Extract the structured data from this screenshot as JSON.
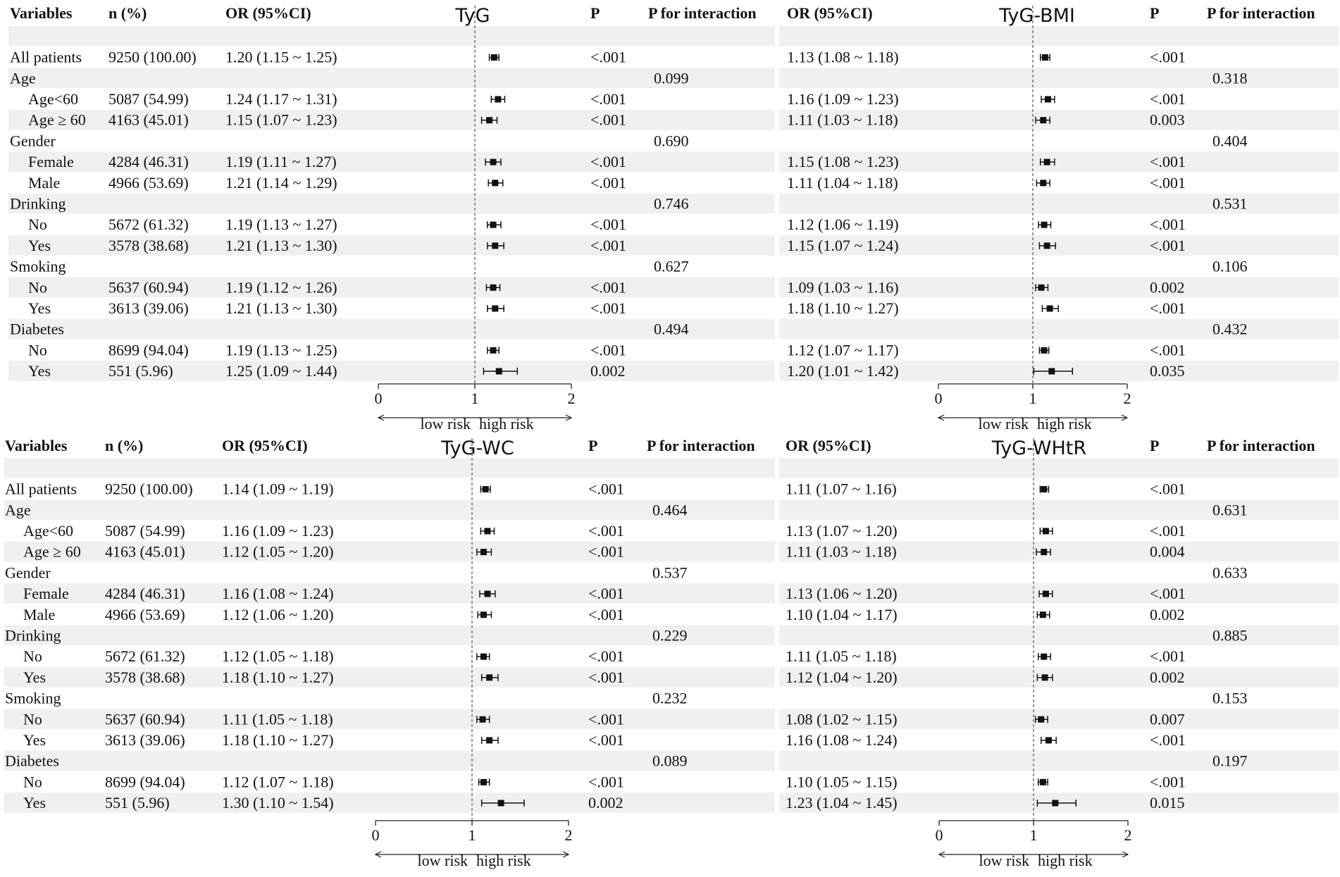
{
  "headers": {
    "variables": "Variables",
    "n": "n (%)",
    "or": "OR (95%CI)",
    "p": "P",
    "p_interaction": "P for interaction"
  },
  "axis": {
    "ticks": [
      "0",
      "1",
      "2"
    ],
    "low": "low risk",
    "high": "high risk"
  },
  "rows": [
    {
      "label": "",
      "indent": false,
      "n": "",
      "shade": true
    },
    {
      "label": "All patients",
      "indent": false,
      "n": "9250 (100.00)",
      "shade": false
    },
    {
      "label": "Age",
      "indent": false,
      "n": "",
      "shade": true
    },
    {
      "label": "Age<60",
      "indent": true,
      "n": "5087 (54.99)",
      "shade": false
    },
    {
      "label": "Age ≥ 60",
      "indent": true,
      "n": "4163 (45.01)",
      "shade": true
    },
    {
      "label": "Gender",
      "indent": false,
      "n": "",
      "shade": false
    },
    {
      "label": "Female",
      "indent": true,
      "n": "4284 (46.31)",
      "shade": true
    },
    {
      "label": "Male",
      "indent": true,
      "n": "4966 (53.69)",
      "shade": false
    },
    {
      "label": "Drinking",
      "indent": false,
      "n": "",
      "shade": true
    },
    {
      "label": "No",
      "indent": true,
      "n": "5672 (61.32)",
      "shade": false
    },
    {
      "label": "Yes",
      "indent": true,
      "n": "3578 (38.68)",
      "shade": true
    },
    {
      "label": "Smoking",
      "indent": false,
      "n": "",
      "shade": false
    },
    {
      "label": "No",
      "indent": true,
      "n": "5637 (60.94)",
      "shade": true
    },
    {
      "label": "Yes",
      "indent": true,
      "n": "3613 (39.06)",
      "shade": false
    },
    {
      "label": "Diabetes",
      "indent": false,
      "n": "",
      "shade": true
    },
    {
      "label": "No",
      "indent": true,
      "n": "8699 (94.04)",
      "shade": false
    },
    {
      "label": "Yes",
      "indent": true,
      "n": "551 (5.96)",
      "shade": true
    }
  ],
  "chart_data": [
    {
      "type": "forest",
      "title": "TyG",
      "xlim": [
        0,
        2
      ],
      "reference": 1,
      "rows": [
        {
          "or": "",
          "p": "",
          "pint": "",
          "est": null,
          "lo": null,
          "hi": null
        },
        {
          "or": "1.20 (1.15 ~ 1.25)",
          "p": "<.001",
          "pint": "",
          "est": 1.2,
          "lo": 1.15,
          "hi": 1.25
        },
        {
          "or": "",
          "p": "",
          "pint": "0.099",
          "est": null,
          "lo": null,
          "hi": null
        },
        {
          "or": "1.24 (1.17 ~ 1.31)",
          "p": "<.001",
          "pint": "",
          "est": 1.24,
          "lo": 1.17,
          "hi": 1.31
        },
        {
          "or": "1.15 (1.07 ~ 1.23)",
          "p": "<.001",
          "pint": "",
          "est": 1.15,
          "lo": 1.07,
          "hi": 1.23
        },
        {
          "or": "",
          "p": "",
          "pint": "0.690",
          "est": null,
          "lo": null,
          "hi": null
        },
        {
          "or": "1.19 (1.11 ~ 1.27)",
          "p": "<.001",
          "pint": "",
          "est": 1.19,
          "lo": 1.11,
          "hi": 1.27
        },
        {
          "or": "1.21 (1.14 ~ 1.29)",
          "p": "<.001",
          "pint": "",
          "est": 1.21,
          "lo": 1.14,
          "hi": 1.29
        },
        {
          "or": "",
          "p": "",
          "pint": "0.746",
          "est": null,
          "lo": null,
          "hi": null
        },
        {
          "or": "1.19 (1.13 ~ 1.27)",
          "p": "<.001",
          "pint": "",
          "est": 1.19,
          "lo": 1.13,
          "hi": 1.27
        },
        {
          "or": "1.21 (1.13 ~ 1.30)",
          "p": "<.001",
          "pint": "",
          "est": 1.21,
          "lo": 1.13,
          "hi": 1.3
        },
        {
          "or": "",
          "p": "",
          "pint": "0.627",
          "est": null,
          "lo": null,
          "hi": null
        },
        {
          "or": "1.19 (1.12 ~ 1.26)",
          "p": "<.001",
          "pint": "",
          "est": 1.19,
          "lo": 1.12,
          "hi": 1.26
        },
        {
          "or": "1.21 (1.13 ~ 1.30)",
          "p": "<.001",
          "pint": "",
          "est": 1.21,
          "lo": 1.13,
          "hi": 1.3
        },
        {
          "or": "",
          "p": "",
          "pint": "0.494",
          "est": null,
          "lo": null,
          "hi": null
        },
        {
          "or": "1.19 (1.13 ~ 1.25)",
          "p": "<.001",
          "pint": "",
          "est": 1.19,
          "lo": 1.13,
          "hi": 1.25
        },
        {
          "or": "1.25 (1.09 ~ 1.44)",
          "p": "0.002",
          "pint": "",
          "est": 1.25,
          "lo": 1.09,
          "hi": 1.44
        }
      ]
    },
    {
      "type": "forest",
      "title": "TyG-BMI",
      "xlim": [
        0,
        2
      ],
      "reference": 1,
      "rows": [
        {
          "or": "",
          "p": "",
          "pint": "",
          "est": null,
          "lo": null,
          "hi": null
        },
        {
          "or": "1.13 (1.08 ~ 1.18)",
          "p": "<.001",
          "pint": "",
          "est": 1.13,
          "lo": 1.08,
          "hi": 1.18
        },
        {
          "or": "",
          "p": "",
          "pint": "0.318",
          "est": null,
          "lo": null,
          "hi": null
        },
        {
          "or": "1.16 (1.09 ~ 1.23)",
          "p": "<.001",
          "pint": "",
          "est": 1.16,
          "lo": 1.09,
          "hi": 1.23
        },
        {
          "or": "1.11 (1.03 ~ 1.18)",
          "p": "0.003",
          "pint": "",
          "est": 1.11,
          "lo": 1.03,
          "hi": 1.18
        },
        {
          "or": "",
          "p": "",
          "pint": "0.404",
          "est": null,
          "lo": null,
          "hi": null
        },
        {
          "or": "1.15 (1.08 ~ 1.23)",
          "p": "<.001",
          "pint": "",
          "est": 1.15,
          "lo": 1.08,
          "hi": 1.23
        },
        {
          "or": "1.11 (1.04 ~ 1.18)",
          "p": "<.001",
          "pint": "",
          "est": 1.11,
          "lo": 1.04,
          "hi": 1.18
        },
        {
          "or": "",
          "p": "",
          "pint": "0.531",
          "est": null,
          "lo": null,
          "hi": null
        },
        {
          "or": "1.12 (1.06 ~ 1.19)",
          "p": "<.001",
          "pint": "",
          "est": 1.12,
          "lo": 1.06,
          "hi": 1.19
        },
        {
          "or": "1.15 (1.07 ~ 1.24)",
          "p": "<.001",
          "pint": "",
          "est": 1.15,
          "lo": 1.07,
          "hi": 1.24
        },
        {
          "or": "",
          "p": "",
          "pint": "0.106",
          "est": null,
          "lo": null,
          "hi": null
        },
        {
          "or": "1.09 (1.03 ~ 1.16)",
          "p": "0.002",
          "pint": "",
          "est": 1.09,
          "lo": 1.03,
          "hi": 1.16
        },
        {
          "or": "1.18 (1.10 ~ 1.27)",
          "p": "<.001",
          "pint": "",
          "est": 1.18,
          "lo": 1.1,
          "hi": 1.27
        },
        {
          "or": "",
          "p": "",
          "pint": "0.432",
          "est": null,
          "lo": null,
          "hi": null
        },
        {
          "or": "1.12 (1.07 ~ 1.17)",
          "p": "<.001",
          "pint": "",
          "est": 1.12,
          "lo": 1.07,
          "hi": 1.17
        },
        {
          "or": "1.20 (1.01 ~ 1.42)",
          "p": "0.035",
          "pint": "",
          "est": 1.2,
          "lo": 1.01,
          "hi": 1.42
        }
      ]
    },
    {
      "type": "forest",
      "title": "TyG-WC",
      "xlim": [
        0,
        2
      ],
      "reference": 1,
      "rows": [
        {
          "or": "",
          "p": "",
          "pint": "",
          "est": null,
          "lo": null,
          "hi": null
        },
        {
          "or": "1.14 (1.09 ~ 1.19)",
          "p": "<.001",
          "pint": "",
          "est": 1.14,
          "lo": 1.09,
          "hi": 1.19
        },
        {
          "or": "",
          "p": "",
          "pint": "0.464",
          "est": null,
          "lo": null,
          "hi": null
        },
        {
          "or": "1.16 (1.09 ~ 1.23)",
          "p": "<.001",
          "pint": "",
          "est": 1.16,
          "lo": 1.09,
          "hi": 1.23
        },
        {
          "or": "1.12 (1.05 ~ 1.20)",
          "p": "<.001",
          "pint": "",
          "est": 1.12,
          "lo": 1.05,
          "hi": 1.2
        },
        {
          "or": "",
          "p": "",
          "pint": "0.537",
          "est": null,
          "lo": null,
          "hi": null
        },
        {
          "or": "1.16 (1.08 ~ 1.24)",
          "p": "<.001",
          "pint": "",
          "est": 1.16,
          "lo": 1.08,
          "hi": 1.24
        },
        {
          "or": "1.12 (1.06 ~ 1.20)",
          "p": "<.001",
          "pint": "",
          "est": 1.12,
          "lo": 1.06,
          "hi": 1.2
        },
        {
          "or": "",
          "p": "",
          "pint": "0.229",
          "est": null,
          "lo": null,
          "hi": null
        },
        {
          "or": "1.12 (1.05 ~ 1.18)",
          "p": "<.001",
          "pint": "",
          "est": 1.12,
          "lo": 1.05,
          "hi": 1.18
        },
        {
          "or": "1.18 (1.10 ~ 1.27)",
          "p": "<.001",
          "pint": "",
          "est": 1.18,
          "lo": 1.1,
          "hi": 1.27
        },
        {
          "or": "",
          "p": "",
          "pint": "0.232",
          "est": null,
          "lo": null,
          "hi": null
        },
        {
          "or": "1.11 (1.05 ~ 1.18)",
          "p": "<.001",
          "pint": "",
          "est": 1.11,
          "lo": 1.05,
          "hi": 1.18
        },
        {
          "or": "1.18 (1.10 ~ 1.27)",
          "p": "<.001",
          "pint": "",
          "est": 1.18,
          "lo": 1.1,
          "hi": 1.27
        },
        {
          "or": "",
          "p": "",
          "pint": "0.089",
          "est": null,
          "lo": null,
          "hi": null
        },
        {
          "or": "1.12 (1.07 ~ 1.18)",
          "p": "<.001",
          "pint": "",
          "est": 1.12,
          "lo": 1.07,
          "hi": 1.18
        },
        {
          "or": "1.30 (1.10 ~ 1.54)",
          "p": "0.002",
          "pint": "",
          "est": 1.3,
          "lo": 1.1,
          "hi": 1.54
        }
      ]
    },
    {
      "type": "forest",
      "title": "TyG-WHtR",
      "xlim": [
        0,
        2
      ],
      "reference": 1,
      "rows": [
        {
          "or": "",
          "p": "",
          "pint": "",
          "est": null,
          "lo": null,
          "hi": null
        },
        {
          "or": "1.11 (1.07 ~ 1.16)",
          "p": "<.001",
          "pint": "",
          "est": 1.11,
          "lo": 1.07,
          "hi": 1.16
        },
        {
          "or": "",
          "p": "",
          "pint": "0.631",
          "est": null,
          "lo": null,
          "hi": null
        },
        {
          "or": "1.13 (1.07 ~ 1.20)",
          "p": "<.001",
          "pint": "",
          "est": 1.13,
          "lo": 1.07,
          "hi": 1.2
        },
        {
          "or": "1.11 (1.03 ~ 1.18)",
          "p": "0.004",
          "pint": "",
          "est": 1.11,
          "lo": 1.03,
          "hi": 1.18
        },
        {
          "or": "",
          "p": "",
          "pint": "0.633",
          "est": null,
          "lo": null,
          "hi": null
        },
        {
          "or": "1.13 (1.06 ~ 1.20)",
          "p": "<.001",
          "pint": "",
          "est": 1.13,
          "lo": 1.06,
          "hi": 1.2
        },
        {
          "or": "1.10 (1.04 ~ 1.17)",
          "p": "0.002",
          "pint": "",
          "est": 1.1,
          "lo": 1.04,
          "hi": 1.17
        },
        {
          "or": "",
          "p": "",
          "pint": "0.885",
          "est": null,
          "lo": null,
          "hi": null
        },
        {
          "or": "1.11 (1.05 ~ 1.18)",
          "p": "<.001",
          "pint": "",
          "est": 1.11,
          "lo": 1.05,
          "hi": 1.18
        },
        {
          "or": "1.12 (1.04 ~ 1.20)",
          "p": "0.002",
          "pint": "",
          "est": 1.12,
          "lo": 1.04,
          "hi": 1.2
        },
        {
          "or": "",
          "p": "",
          "pint": "0.153",
          "est": null,
          "lo": null,
          "hi": null
        },
        {
          "or": "1.08 (1.02 ~ 1.15)",
          "p": "0.007",
          "pint": "",
          "est": 1.08,
          "lo": 1.02,
          "hi": 1.15
        },
        {
          "or": "1.16 (1.08 ~ 1.24)",
          "p": "<.001",
          "pint": "",
          "est": 1.16,
          "lo": 1.08,
          "hi": 1.24
        },
        {
          "or": "",
          "p": "",
          "pint": "0.197",
          "est": null,
          "lo": null,
          "hi": null
        },
        {
          "or": "1.10 (1.05 ~ 1.15)",
          "p": "<.001",
          "pint": "",
          "est": 1.1,
          "lo": 1.05,
          "hi": 1.15
        },
        {
          "or": "1.23 (1.04 ~ 1.45)",
          "p": "0.015",
          "pint": "",
          "est": 1.23,
          "lo": 1.04,
          "hi": 1.45
        }
      ]
    }
  ]
}
